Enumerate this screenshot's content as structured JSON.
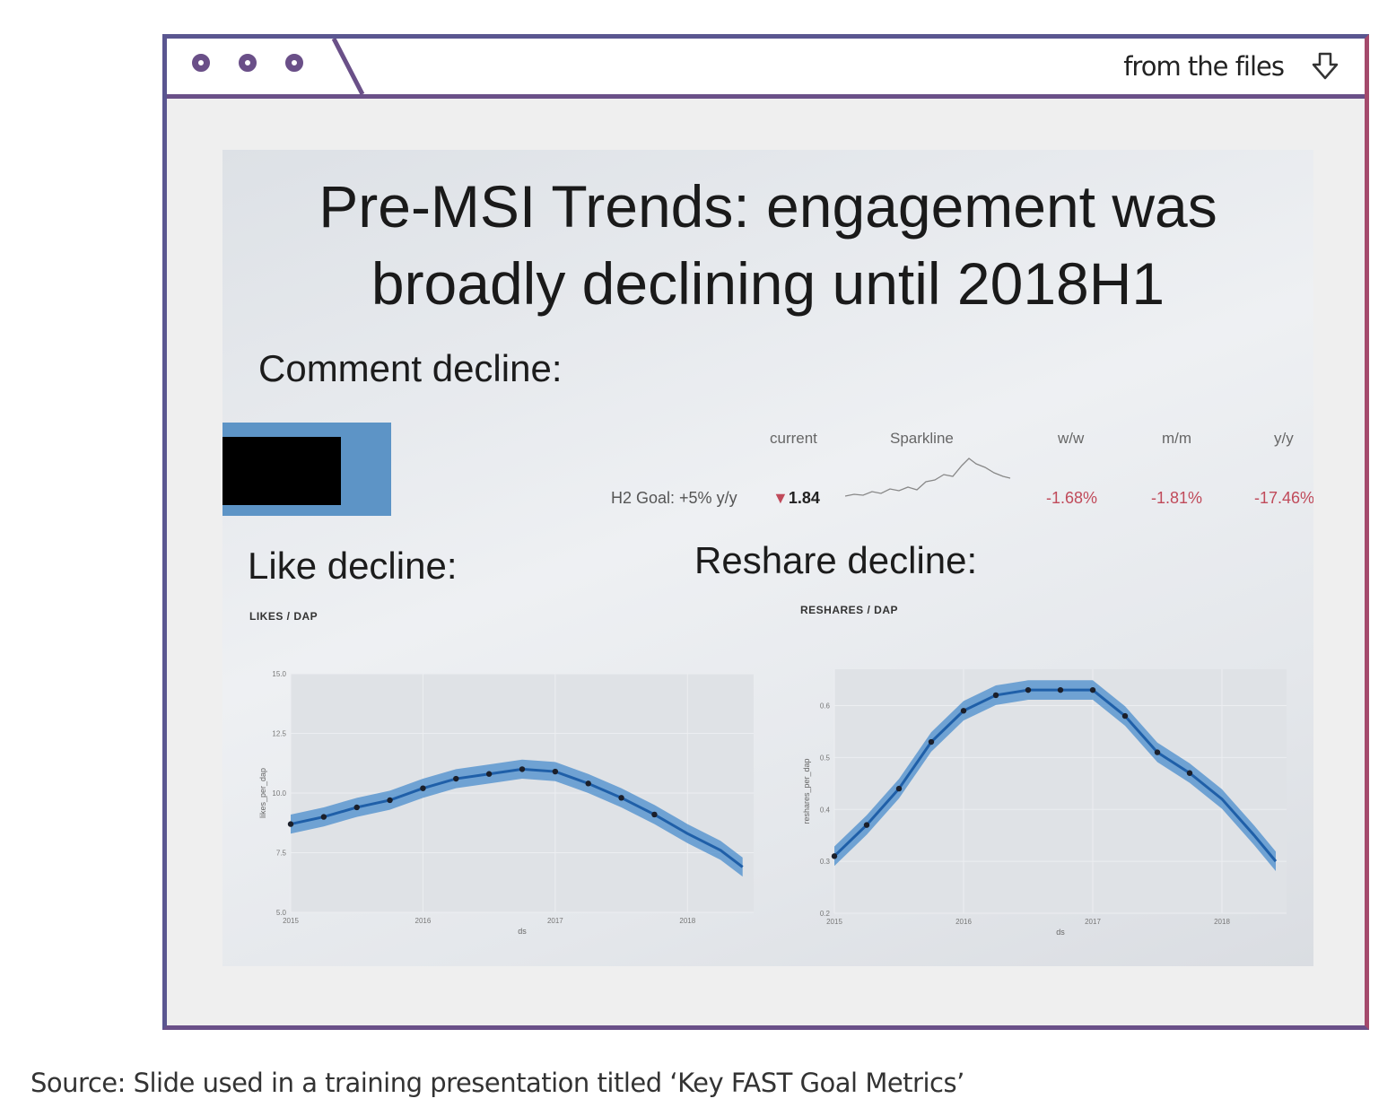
{
  "window": {
    "files_label": "from the files",
    "download_icon": "download-arrow-icon",
    "window_dots_icon": "window-control-dot-icon"
  },
  "slide": {
    "title_line1": "Pre-MSI Trends: engagement was",
    "title_line2": "broadly declining until 2018H1",
    "comment_heading": "Comment decline:",
    "like_heading": "Like decline:",
    "reshare_heading": "Reshare decline:",
    "metrics": {
      "headers": {
        "current": "current",
        "sparkline": "Sparkline",
        "ww": "w/w",
        "mm": "m/m",
        "yy": "y/y"
      },
      "goal_label": "H2 Goal: +5% y/y",
      "current_arrow": "▼",
      "current_value": "1.84",
      "ww": "-1.68%",
      "mm": "-1.81%",
      "yy": "-17.46%",
      "sparkline_icon": "sparkline-icon"
    }
  },
  "chart_data": [
    {
      "type": "scatter",
      "title": "LIKES / DAP",
      "xlabel": "ds",
      "ylabel": "likes_per_dap",
      "x_ticks": [
        "2015",
        "2016",
        "2017",
        "2018"
      ],
      "y_ticks": [
        "5.0",
        "7.5",
        "10.0",
        "12.5",
        "15.0"
      ],
      "ylim": [
        5.0,
        15.0
      ],
      "xlim": [
        "2015-01",
        "2018-07"
      ],
      "series": [
        {
          "values": [
            {
              "x": "2015-01",
              "y": 8.7
            },
            {
              "x": "2015-04",
              "y": 9.0
            },
            {
              "x": "2015-07",
              "y": 9.4
            },
            {
              "x": "2015-10",
              "y": 9.7
            },
            {
              "x": "2016-01",
              "y": 10.2
            },
            {
              "x": "2016-04",
              "y": 10.6
            },
            {
              "x": "2016-07",
              "y": 10.8
            },
            {
              "x": "2016-10",
              "y": 11.0
            },
            {
              "x": "2017-01",
              "y": 10.9
            },
            {
              "x": "2017-04",
              "y": 10.4
            },
            {
              "x": "2017-07",
              "y": 9.8
            },
            {
              "x": "2017-10",
              "y": 9.1
            },
            {
              "x": "2018-01",
              "y": 8.3
            },
            {
              "x": "2018-04",
              "y": 7.6
            },
            {
              "x": "2018-06",
              "y": 6.9
            }
          ]
        }
      ]
    },
    {
      "type": "scatter",
      "title": "RESHARES / DAP",
      "xlabel": "ds",
      "ylabel": "reshares_per_dap",
      "x_ticks": [
        "2015",
        "2016",
        "2017",
        "2018"
      ],
      "y_ticks": [
        "0.2",
        "0.3",
        "0.4",
        "0.5",
        "0.6"
      ],
      "ylim": [
        0.2,
        0.67
      ],
      "xlim": [
        "2015-01",
        "2018-07"
      ],
      "series": [
        {
          "values": [
            {
              "x": "2015-01",
              "y": 0.31
            },
            {
              "x": "2015-04",
              "y": 0.37
            },
            {
              "x": "2015-07",
              "y": 0.44
            },
            {
              "x": "2015-10",
              "y": 0.53
            },
            {
              "x": "2016-01",
              "y": 0.59
            },
            {
              "x": "2016-04",
              "y": 0.62
            },
            {
              "x": "2016-07",
              "y": 0.63
            },
            {
              "x": "2016-10",
              "y": 0.63
            },
            {
              "x": "2017-01",
              "y": 0.63
            },
            {
              "x": "2017-04",
              "y": 0.58
            },
            {
              "x": "2017-07",
              "y": 0.51
            },
            {
              "x": "2017-10",
              "y": 0.47
            },
            {
              "x": "2018-01",
              "y": 0.42
            },
            {
              "x": "2018-04",
              "y": 0.35
            },
            {
              "x": "2018-06",
              "y": 0.3
            }
          ]
        }
      ]
    }
  ],
  "caption": "Source: Slide used in a training presentation titled ‘Key FAST Goal Metrics’"
}
